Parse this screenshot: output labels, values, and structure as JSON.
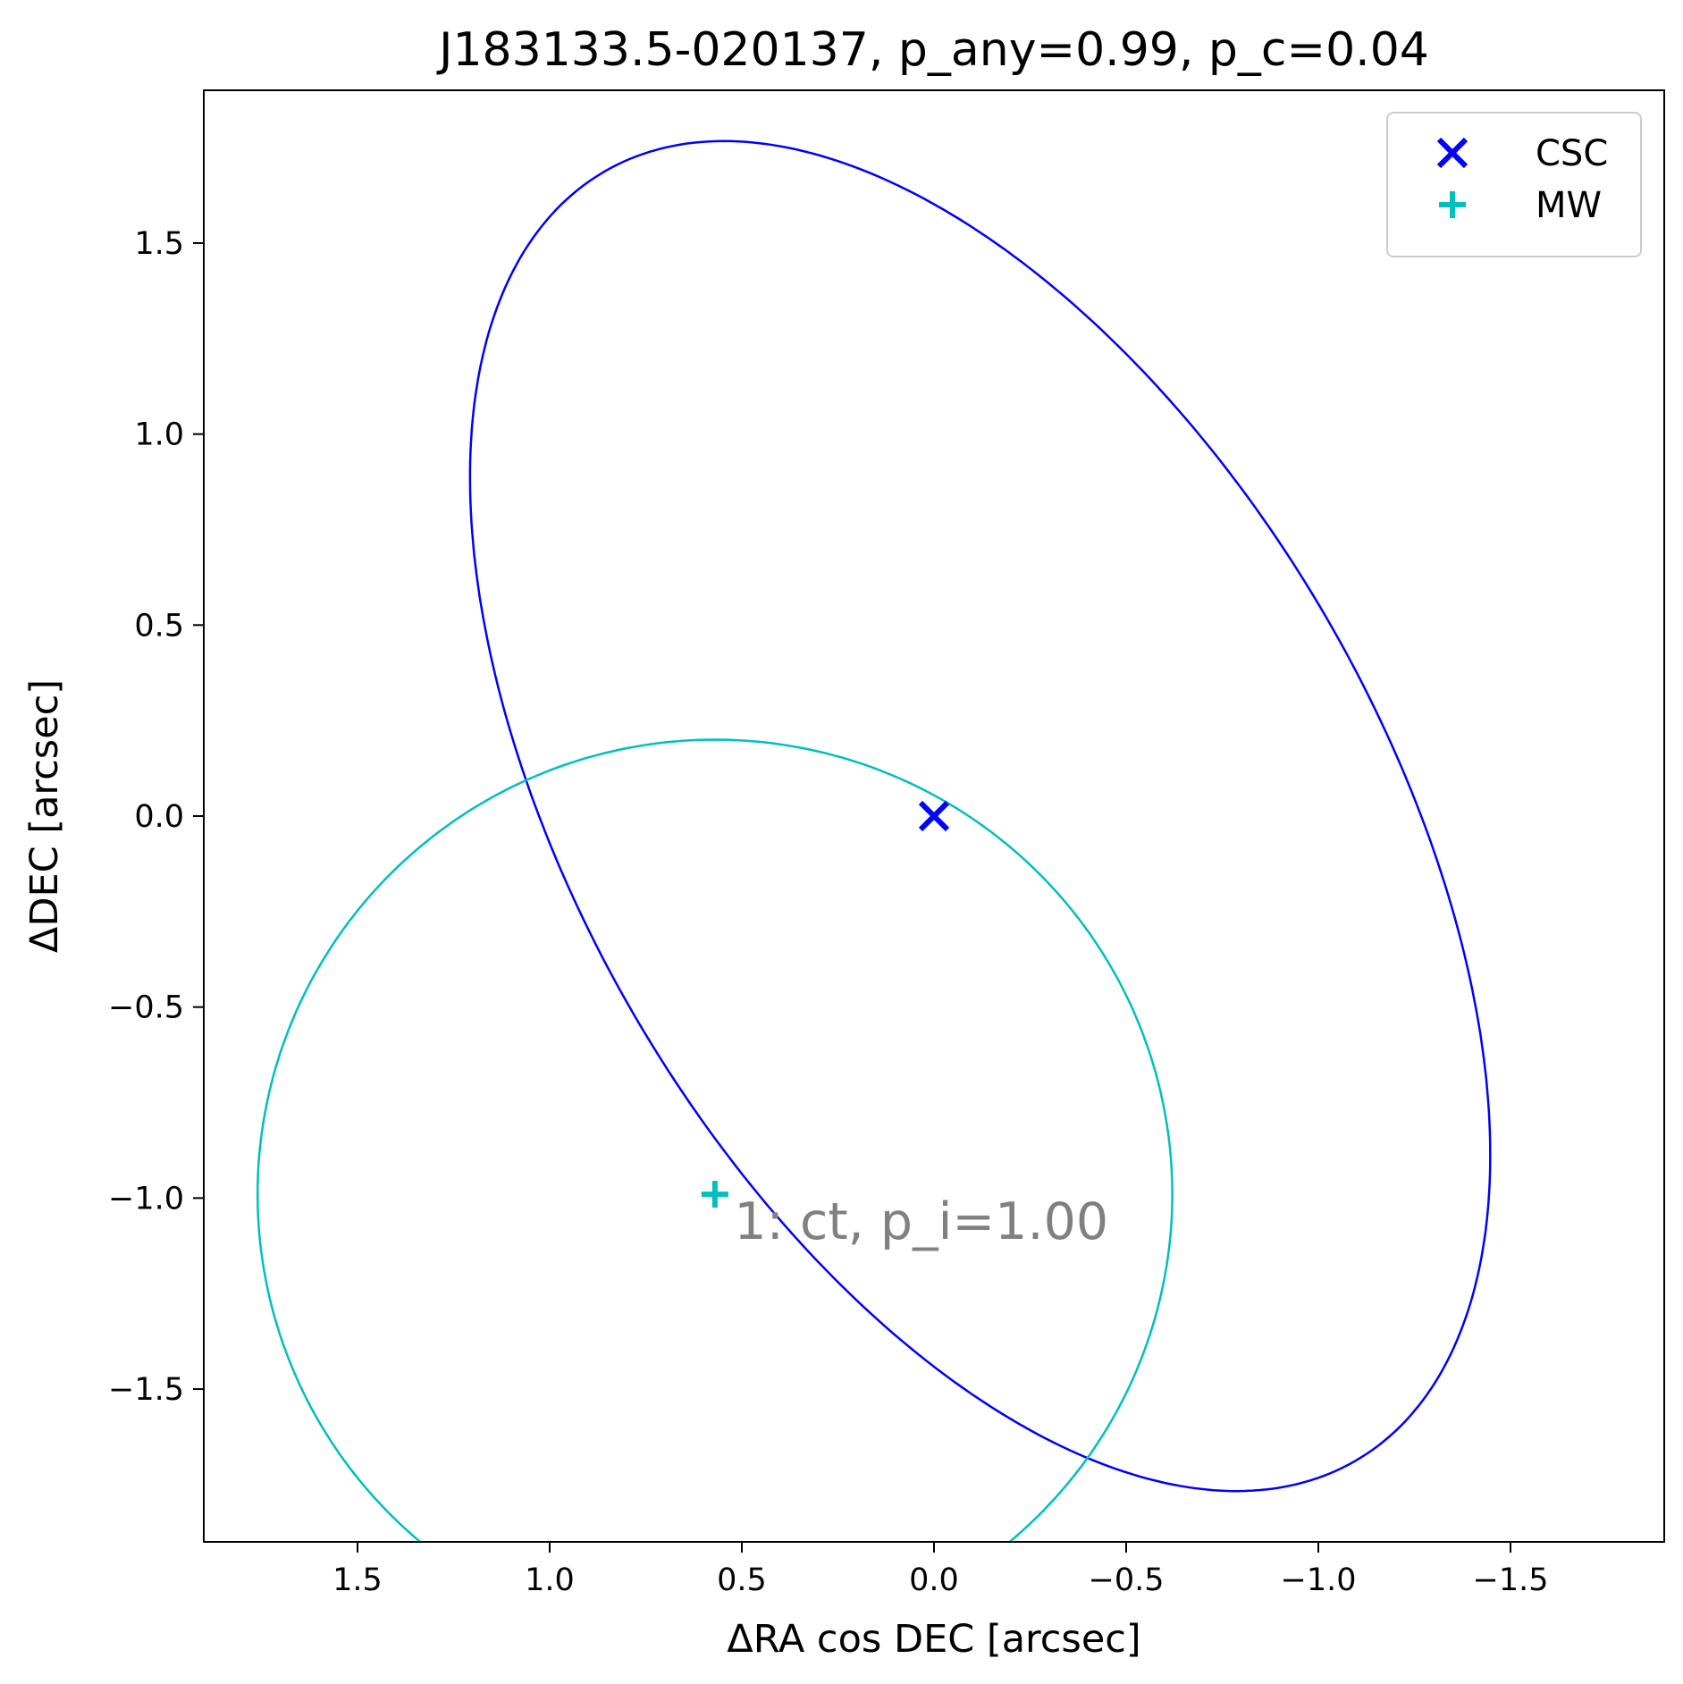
{
  "chart_data": {
    "type": "scatter",
    "title": "J183133.5-020137, p_any=0.99, p_c=0.04",
    "xlabel": "ΔRA cos DEC [arcsec]",
    "ylabel": "ΔDEC [arcsec]",
    "xlim": [
      1.9,
      -1.9
    ],
    "ylim": [
      -1.9,
      1.9
    ],
    "x_inverted": true,
    "grid": false,
    "xticks": [
      1.5,
      1.0,
      0.5,
      0.0,
      -0.5,
      -1.0,
      -1.5
    ],
    "xtick_labels": [
      "1.5",
      "1.0",
      "0.5",
      "0.0",
      "−0.5",
      "−1.0",
      "−1.5"
    ],
    "yticks": [
      1.5,
      1.0,
      0.5,
      0.0,
      -0.5,
      -1.0,
      -1.5
    ],
    "ytick_labels": [
      "1.5",
      "1.0",
      "0.5",
      "0.0",
      "−0.5",
      "−1.0",
      "−1.5"
    ],
    "legend_position": "top-right",
    "series": [
      {
        "name": "CSC",
        "marker": "x",
        "color": "#0000ff",
        "points": [
          {
            "x": 0.0,
            "y": 0.0
          }
        ]
      },
      {
        "name": "MW",
        "marker": "+",
        "color": "#00bfbf",
        "points": [
          {
            "x": 0.57,
            "y": -0.99
          }
        ]
      }
    ],
    "ellipses": [
      {
        "series": "CSC",
        "color": "#0000ff",
        "center": [
          -0.12,
          0.0
        ],
        "semi_major": 1.95,
        "semi_minor": 1.04,
        "angle_deg": 60
      },
      {
        "series": "MW",
        "color": "#00bfbf",
        "center": [
          0.57,
          -0.99
        ],
        "semi_major": 1.19,
        "semi_minor": 1.19,
        "angle_deg": 0
      }
    ],
    "annotations": [
      {
        "text": "1: ct, p_i=1.00",
        "x": 0.52,
        "y": -1.06,
        "color": "#808080"
      }
    ]
  }
}
